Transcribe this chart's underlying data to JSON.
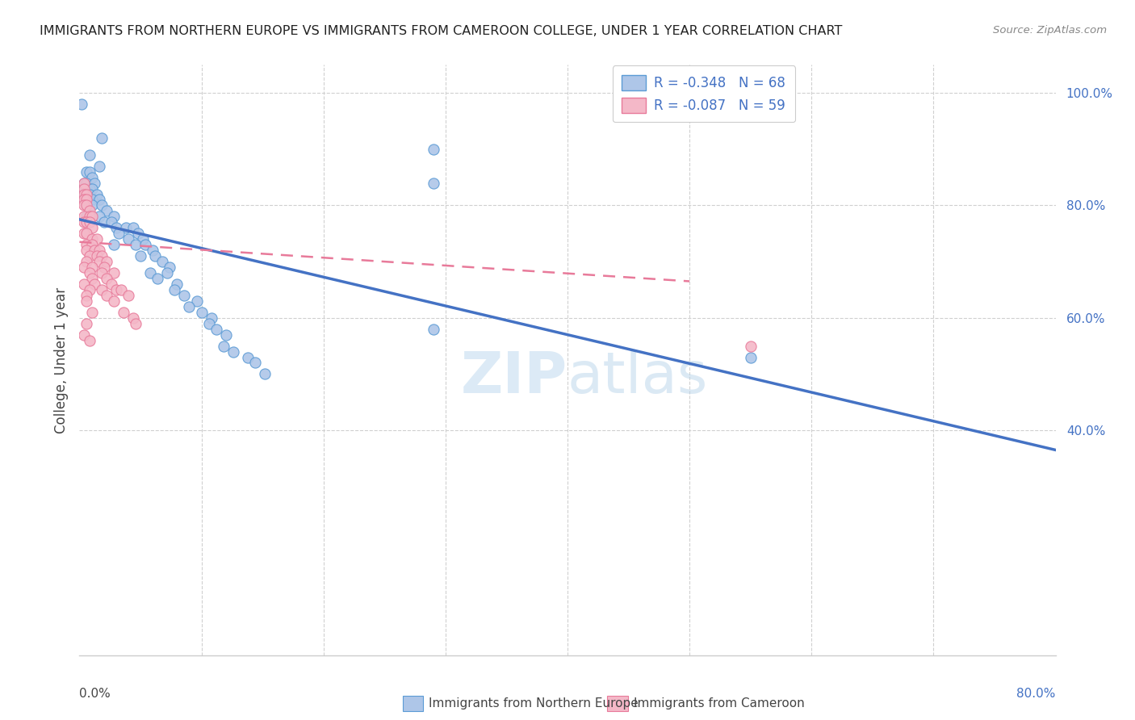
{
  "title": "IMMIGRANTS FROM NORTHERN EUROPE VS IMMIGRANTS FROM CAMEROON COLLEGE, UNDER 1 YEAR CORRELATION CHART",
  "source": "Source: ZipAtlas.com",
  "ylabel": "College, Under 1 year",
  "legend_blue_label": "Immigrants from Northern Europe",
  "legend_pink_label": "Immigrants from Cameroon",
  "legend_blue_r": "R = -0.348",
  "legend_blue_n": "N = 68",
  "legend_pink_r": "R = -0.087",
  "legend_pink_n": "N = 59",
  "blue_color": "#aec6e8",
  "blue_edge_color": "#5b9bd5",
  "blue_line_color": "#4472c4",
  "pink_color": "#f4b8c8",
  "pink_edge_color": "#e87a9a",
  "pink_line_color": "#e87a9a",
  "blue_scatter": [
    [
      0.002,
      0.98
    ],
    [
      0.018,
      0.92
    ],
    [
      0.008,
      0.89
    ],
    [
      0.016,
      0.87
    ],
    [
      0.006,
      0.86
    ],
    [
      0.008,
      0.86
    ],
    [
      0.01,
      0.85
    ],
    [
      0.004,
      0.84
    ],
    [
      0.006,
      0.84
    ],
    [
      0.012,
      0.84
    ],
    [
      0.004,
      0.83
    ],
    [
      0.006,
      0.83
    ],
    [
      0.008,
      0.83
    ],
    [
      0.01,
      0.83
    ],
    [
      0.004,
      0.82
    ],
    [
      0.006,
      0.82
    ],
    [
      0.008,
      0.82
    ],
    [
      0.014,
      0.82
    ],
    [
      0.004,
      0.81
    ],
    [
      0.006,
      0.81
    ],
    [
      0.01,
      0.81
    ],
    [
      0.016,
      0.81
    ],
    [
      0.006,
      0.8
    ],
    [
      0.01,
      0.8
    ],
    [
      0.018,
      0.8
    ],
    [
      0.022,
      0.79
    ],
    [
      0.006,
      0.78
    ],
    [
      0.016,
      0.78
    ],
    [
      0.028,
      0.78
    ],
    [
      0.02,
      0.77
    ],
    [
      0.026,
      0.77
    ],
    [
      0.03,
      0.76
    ],
    [
      0.038,
      0.76
    ],
    [
      0.044,
      0.76
    ],
    [
      0.032,
      0.75
    ],
    [
      0.048,
      0.75
    ],
    [
      0.04,
      0.74
    ],
    [
      0.052,
      0.74
    ],
    [
      0.028,
      0.73
    ],
    [
      0.046,
      0.73
    ],
    [
      0.054,
      0.73
    ],
    [
      0.06,
      0.72
    ],
    [
      0.05,
      0.71
    ],
    [
      0.062,
      0.71
    ],
    [
      0.068,
      0.7
    ],
    [
      0.074,
      0.69
    ],
    [
      0.058,
      0.68
    ],
    [
      0.072,
      0.68
    ],
    [
      0.064,
      0.67
    ],
    [
      0.08,
      0.66
    ],
    [
      0.078,
      0.65
    ],
    [
      0.086,
      0.64
    ],
    [
      0.096,
      0.63
    ],
    [
      0.09,
      0.62
    ],
    [
      0.1,
      0.61
    ],
    [
      0.108,
      0.6
    ],
    [
      0.106,
      0.59
    ],
    [
      0.112,
      0.58
    ],
    [
      0.12,
      0.57
    ],
    [
      0.118,
      0.55
    ],
    [
      0.126,
      0.54
    ],
    [
      0.138,
      0.53
    ],
    [
      0.144,
      0.52
    ],
    [
      0.152,
      0.5
    ],
    [
      0.29,
      0.58
    ],
    [
      0.29,
      0.84
    ],
    [
      0.29,
      0.9
    ],
    [
      0.55,
      0.53
    ]
  ],
  "pink_scatter": [
    [
      0.004,
      0.84
    ],
    [
      0.004,
      0.83
    ],
    [
      0.004,
      0.82
    ],
    [
      0.006,
      0.82
    ],
    [
      0.004,
      0.81
    ],
    [
      0.006,
      0.81
    ],
    [
      0.004,
      0.8
    ],
    [
      0.006,
      0.8
    ],
    [
      0.008,
      0.79
    ],
    [
      0.004,
      0.78
    ],
    [
      0.008,
      0.78
    ],
    [
      0.01,
      0.78
    ],
    [
      0.004,
      0.77
    ],
    [
      0.006,
      0.77
    ],
    [
      0.008,
      0.77
    ],
    [
      0.01,
      0.76
    ],
    [
      0.004,
      0.75
    ],
    [
      0.006,
      0.75
    ],
    [
      0.01,
      0.74
    ],
    [
      0.014,
      0.74
    ],
    [
      0.006,
      0.73
    ],
    [
      0.01,
      0.73
    ],
    [
      0.006,
      0.72
    ],
    [
      0.012,
      0.72
    ],
    [
      0.016,
      0.72
    ],
    [
      0.008,
      0.71
    ],
    [
      0.014,
      0.71
    ],
    [
      0.018,
      0.71
    ],
    [
      0.006,
      0.7
    ],
    [
      0.016,
      0.7
    ],
    [
      0.022,
      0.7
    ],
    [
      0.004,
      0.69
    ],
    [
      0.01,
      0.69
    ],
    [
      0.02,
      0.69
    ],
    [
      0.008,
      0.68
    ],
    [
      0.018,
      0.68
    ],
    [
      0.028,
      0.68
    ],
    [
      0.01,
      0.67
    ],
    [
      0.022,
      0.67
    ],
    [
      0.004,
      0.66
    ],
    [
      0.012,
      0.66
    ],
    [
      0.026,
      0.66
    ],
    [
      0.008,
      0.65
    ],
    [
      0.018,
      0.65
    ],
    [
      0.03,
      0.65
    ],
    [
      0.034,
      0.65
    ],
    [
      0.006,
      0.64
    ],
    [
      0.022,
      0.64
    ],
    [
      0.04,
      0.64
    ],
    [
      0.006,
      0.63
    ],
    [
      0.028,
      0.63
    ],
    [
      0.01,
      0.61
    ],
    [
      0.036,
      0.61
    ],
    [
      0.044,
      0.6
    ],
    [
      0.006,
      0.59
    ],
    [
      0.046,
      0.59
    ],
    [
      0.004,
      0.57
    ],
    [
      0.008,
      0.56
    ],
    [
      0.55,
      0.55
    ]
  ],
  "blue_line_x": [
    0.0,
    0.8
  ],
  "blue_line_y": [
    0.775,
    0.365
  ],
  "pink_line_x": [
    0.0,
    0.5
  ],
  "pink_line_y": [
    0.735,
    0.665
  ],
  "xmin": 0.0,
  "xmax": 0.8,
  "ymin": 0.0,
  "ymax": 1.05,
  "yticks": [
    0.4,
    0.6,
    0.8,
    1.0
  ],
  "ytick_labels": [
    "40.0%",
    "60.0%",
    "80.0%",
    "100.0%"
  ],
  "watermark_zip": "ZIP",
  "watermark_atlas": "atlas",
  "grid_color": "#d0d0d0",
  "spine_color": "#cccccc"
}
